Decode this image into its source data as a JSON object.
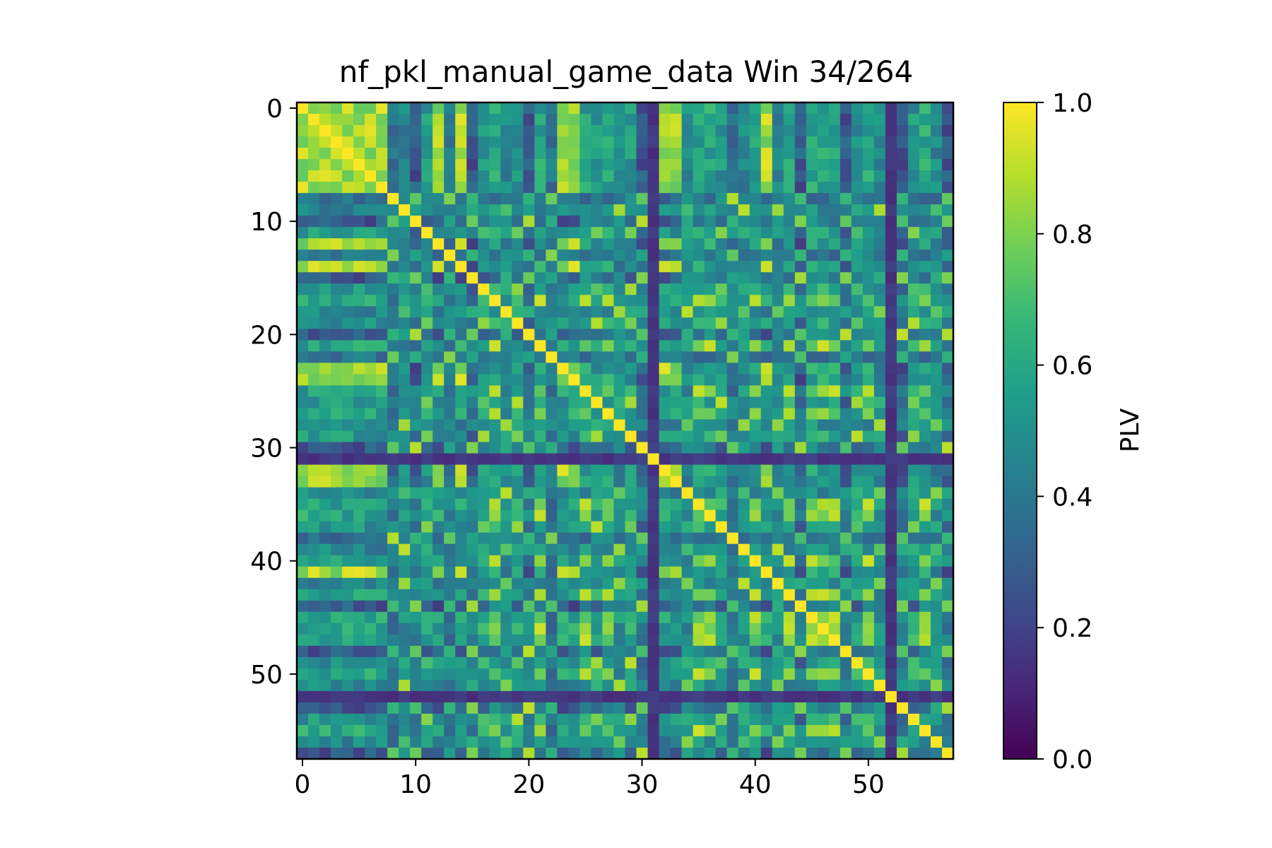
{
  "chart_data": {
    "type": "heatmap",
    "title": "nf_pkl_manual_game_data Win 34/264",
    "size": 58,
    "x_ticks": [
      0,
      10,
      20,
      30,
      40,
      50
    ],
    "y_ticks": [
      0,
      10,
      20,
      30,
      40,
      50
    ],
    "colorbar": {
      "label": "PLV",
      "range": [
        0.0,
        1.0
      ],
      "ticks": [
        "0.0",
        "0.2",
        "0.4",
        "0.6",
        "0.8",
        "1.0"
      ]
    },
    "colormap": "viridis",
    "colormap_stops": [
      "#440154",
      "#482878",
      "#3e4a89",
      "#31688e",
      "#26828e",
      "#1f9e89",
      "#35b779",
      "#6ece58",
      "#b5de2b",
      "#fde725"
    ],
    "matrix_model": {
      "diagonal": 1.0,
      "channel_groups": [
        0,
        0,
        0,
        0,
        0,
        0,
        0,
        0,
        3,
        5,
        1,
        4,
        0,
        3,
        0,
        1,
        4,
        2,
        5,
        4,
        1,
        2,
        3,
        0,
        0,
        2,
        4,
        2,
        5,
        4,
        1,
        3,
        0,
        0,
        5,
        2,
        2,
        4,
        3,
        5,
        2,
        0,
        5,
        2,
        1,
        2,
        2,
        2,
        1,
        4,
        2,
        5,
        3,
        1,
        4,
        2,
        5,
        1
      ],
      "group_similarity": [
        [
          0.86,
          0.28,
          0.58,
          0.38,
          0.52,
          0.46
        ],
        [
          0.28,
          0.8,
          0.44,
          0.66,
          0.35,
          0.52
        ],
        [
          0.58,
          0.44,
          0.82,
          0.4,
          0.6,
          0.5
        ],
        [
          0.38,
          0.66,
          0.4,
          0.78,
          0.45,
          0.42
        ],
        [
          0.52,
          0.35,
          0.6,
          0.45,
          0.8,
          0.55
        ],
        [
          0.46,
          0.52,
          0.5,
          0.42,
          0.55,
          0.79
        ]
      ],
      "low_channels": [
        31,
        52
      ],
      "low_value": 0.12,
      "seed": 34
    }
  }
}
